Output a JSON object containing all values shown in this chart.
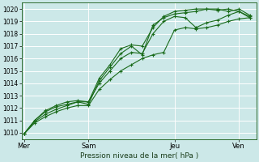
{
  "background_color": "#cce8e8",
  "grid_color": "#ffffff",
  "line_color": "#1a6b1a",
  "ylabel": "Pression niveau de la mer( hPa )",
  "ylim": [
    1009.5,
    1020.5
  ],
  "yticks": [
    1010,
    1011,
    1012,
    1013,
    1014,
    1015,
    1016,
    1017,
    1018,
    1019,
    1020
  ],
  "xtick_labels": [
    "Mer",
    "Sam",
    "Jeu",
    "Ven"
  ],
  "xtick_positions": [
    0,
    3,
    7,
    10
  ],
  "xlim": [
    -0.1,
    10.8
  ],
  "vline_positions": [
    0,
    3,
    7,
    10
  ],
  "series": [
    {
      "x": [
        0,
        0.5,
        1.0,
        1.5,
        2.0,
        2.5,
        3.0,
        3.5,
        4.0,
        4.5,
        5.0,
        5.5,
        6.0,
        6.5,
        7.0,
        7.5,
        8.0,
        8.5,
        9.0,
        9.5,
        10.0,
        10.5
      ],
      "y": [
        1009.9,
        1010.8,
        1011.3,
        1011.7,
        1012.0,
        1012.2,
        1012.2,
        1013.5,
        1014.3,
        1015.0,
        1015.5,
        1016.0,
        1016.3,
        1016.5,
        1018.3,
        1018.5,
        1018.4,
        1018.5,
        1018.7,
        1019.0,
        1019.2,
        1019.3
      ]
    },
    {
      "x": [
        0,
        0.5,
        1.0,
        1.5,
        2.0,
        2.5,
        3.0,
        3.5,
        4.0,
        4.5,
        5.0,
        5.5,
        6.0,
        6.5,
        7.0,
        7.5,
        8.0,
        8.5,
        9.0,
        9.5,
        10.0,
        10.5
      ],
      "y": [
        1009.9,
        1010.9,
        1011.5,
        1011.9,
        1012.2,
        1012.5,
        1012.5,
        1014.0,
        1015.0,
        1016.0,
        1016.5,
        1016.4,
        1018.0,
        1019.0,
        1019.4,
        1019.3,
        1018.5,
        1018.9,
        1019.1,
        1019.5,
        1019.8,
        1019.3
      ]
    },
    {
      "x": [
        0,
        0.5,
        1.0,
        1.5,
        2.0,
        2.5,
        3.0,
        3.5,
        4.0,
        4.5,
        5.0,
        5.5,
        6.0,
        6.5,
        7.0,
        7.5,
        8.0,
        8.5,
        9.0,
        9.5,
        10.0,
        10.5
      ],
      "y": [
        1009.9,
        1011.0,
        1011.7,
        1012.1,
        1012.3,
        1012.5,
        1012.3,
        1014.2,
        1015.3,
        1016.4,
        1017.0,
        1016.3,
        1018.7,
        1019.3,
        1019.6,
        1019.7,
        1019.8,
        1020.0,
        1019.9,
        1020.0,
        1019.8,
        1019.4
      ]
    },
    {
      "x": [
        0,
        0.5,
        1.0,
        1.5,
        2.0,
        2.5,
        3.0,
        3.5,
        4.0,
        4.5,
        5.0,
        5.5,
        6.0,
        6.5,
        7.0,
        7.5,
        8.0,
        8.5,
        9.0,
        9.5,
        10.0,
        10.5
      ],
      "y": [
        1009.9,
        1011.0,
        1011.8,
        1012.2,
        1012.5,
        1012.6,
        1012.5,
        1014.4,
        1015.5,
        1016.8,
        1017.1,
        1017.0,
        1018.5,
        1019.4,
        1019.8,
        1019.9,
        1020.0,
        1020.0,
        1020.0,
        1019.8,
        1020.0,
        1019.5
      ]
    }
  ]
}
